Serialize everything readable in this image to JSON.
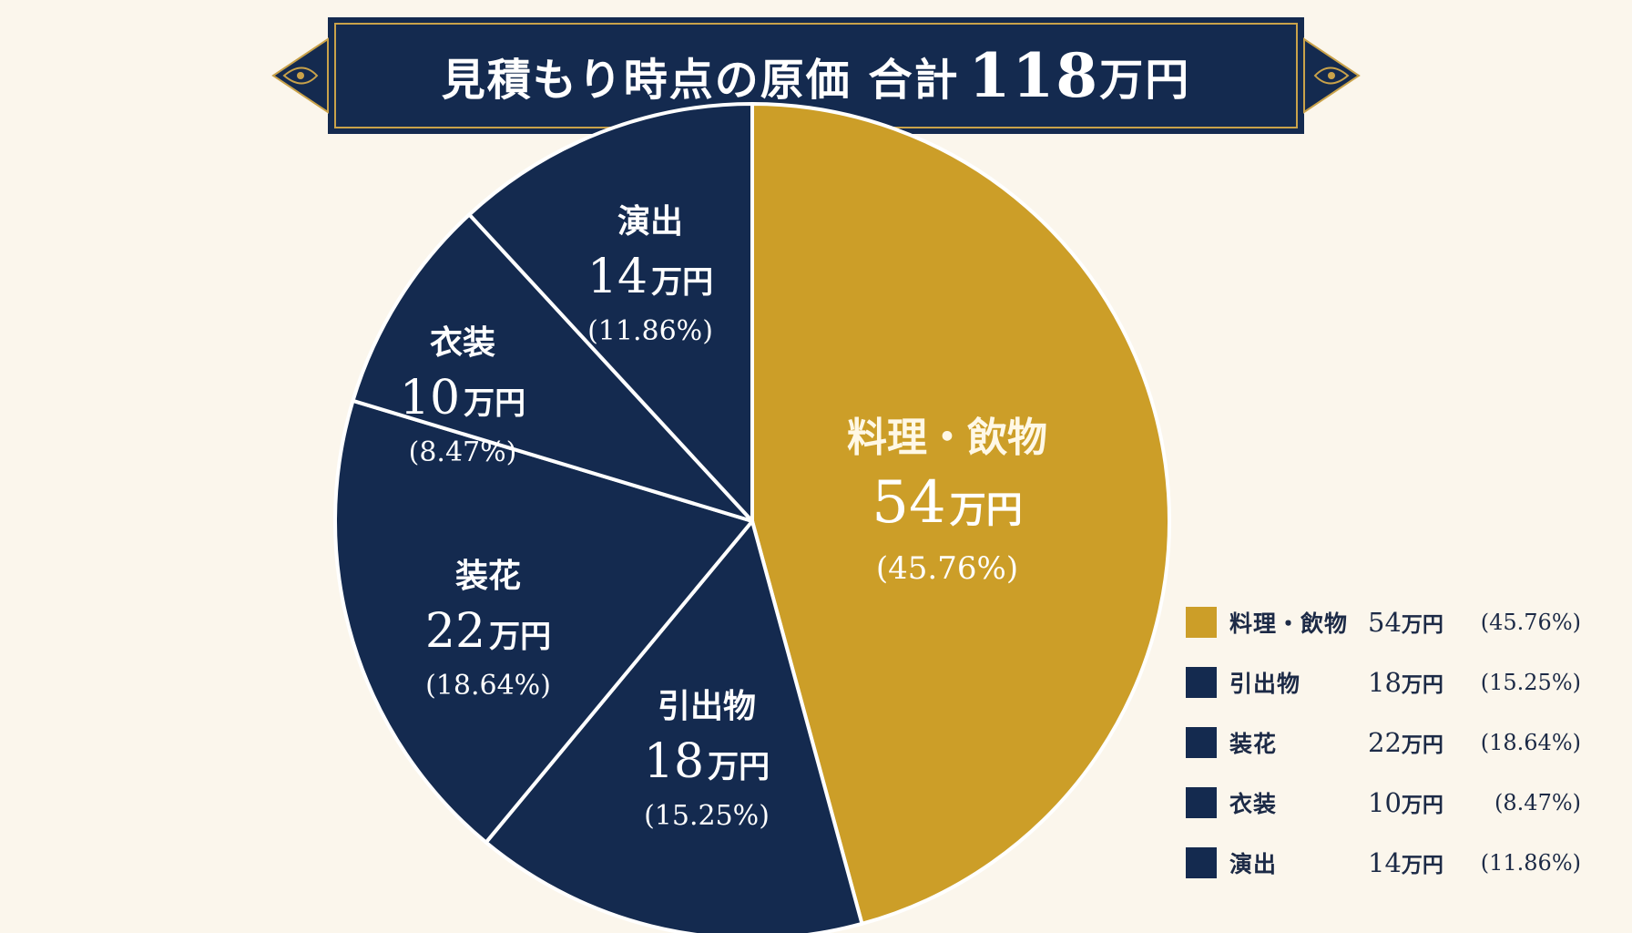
{
  "header": {
    "title_prefix": "見積もり時点の原価 合計",
    "title_total": "118",
    "title_unit": "万円"
  },
  "colors": {
    "navy": "#142a4f",
    "gold": "#cc9e28",
    "background": "#fbf6ec",
    "border_gold": "#c9a24a"
  },
  "chart_data": {
    "type": "pie",
    "title": "見積もり時点の原価 合計118万円",
    "unit": "万円",
    "total": 118,
    "legend_position": "bottom-right",
    "slices": [
      {
        "label": "料理・飲物",
        "value": 54,
        "value_text": "54",
        "percent_text": "(45.76%)",
        "color": "#cc9e28"
      },
      {
        "label": "引出物",
        "value": 18,
        "value_text": "18",
        "percent_text": "(15.25%)",
        "color": "#142a4f"
      },
      {
        "label": "装花",
        "value": 22,
        "value_text": "22",
        "percent_text": "(18.64%)",
        "color": "#142a4f"
      },
      {
        "label": "衣装",
        "value": 10,
        "value_text": "10",
        "percent_text": "(8.47%)",
        "color": "#142a4f"
      },
      {
        "label": "演出",
        "value": 14,
        "value_text": "14",
        "percent_text": "(11.86%)",
        "color": "#142a4f"
      }
    ]
  }
}
